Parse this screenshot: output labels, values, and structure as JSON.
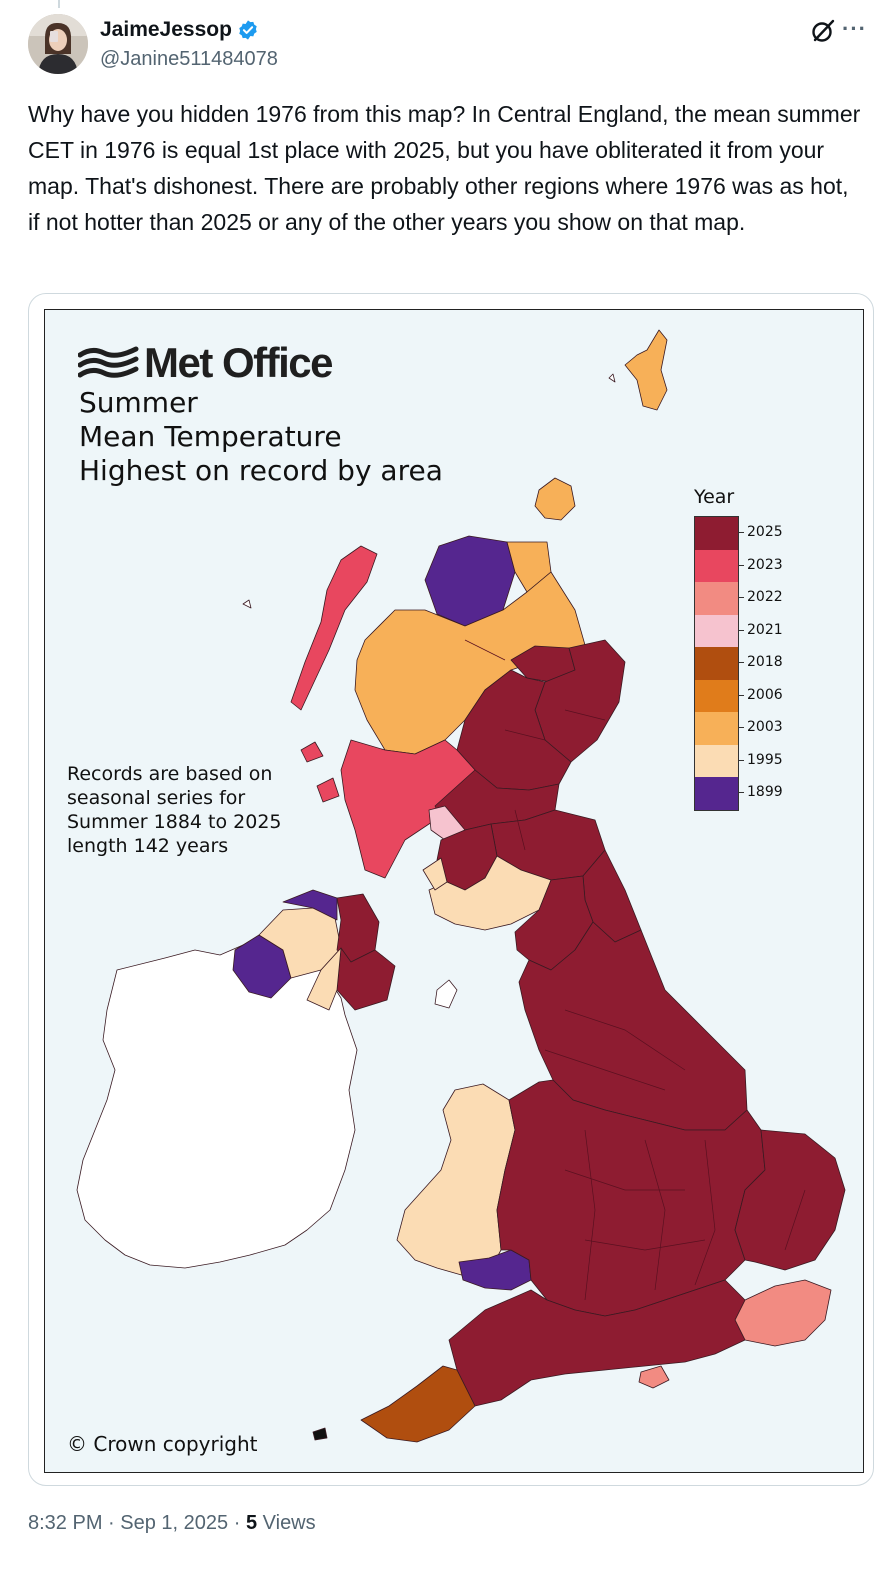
{
  "post": {
    "display_name": "JaimeJessop",
    "handle": "@Janine511484078",
    "text": "Why have you hidden 1976 from this map? In Central England, the mean summer CET in 1976 is equal 1st place with 2025, but you have obliterated it from your map. That's dishonest. There are probably other regions where 1976 was as hot, if not hotter than 2025 or any of the other years you show on that map.",
    "time": "8:32 PM",
    "separator": "·",
    "date": "Sep 1, 2025",
    "views_count": "5",
    "views_label": "Views"
  },
  "icons": {
    "verified": "verified-badge-icon",
    "grok": "grok-icon",
    "more": "more-icon"
  },
  "map": {
    "brand": "Met Office",
    "title_lines": [
      "Summer",
      "Mean Temperature",
      "Highest on record by area"
    ],
    "note_lines": [
      "Records are based on",
      "seasonal series for",
      "Summer 1884 to 2025",
      "length 142 years"
    ],
    "copyright": "© Crown copyright",
    "legend_title": "Year",
    "legend": [
      {
        "year": "2025",
        "color": "#8e1c31"
      },
      {
        "year": "2023",
        "color": "#e8475f"
      },
      {
        "year": "2022",
        "color": "#f28b82"
      },
      {
        "year": "2021",
        "color": "#f6c3cf"
      },
      {
        "year": "2018",
        "color": "#b04e0f"
      },
      {
        "year": "2006",
        "color": "#e07c1b"
      },
      {
        "year": "2003",
        "color": "#f7b058"
      },
      {
        "year": "1995",
        "color": "#fbdcb4"
      },
      {
        "year": "1899",
        "color": "#55268f"
      }
    ]
  },
  "colors": {
    "text_primary": "#0f1419",
    "text_secondary": "#536471",
    "verified": "#1d9bf0",
    "sea": "#eef6f9"
  }
}
